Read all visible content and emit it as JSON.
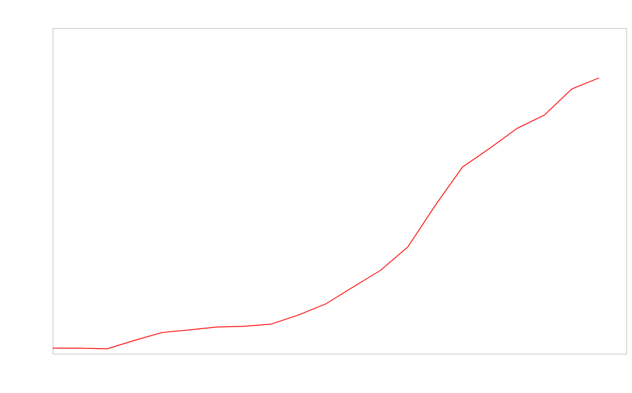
{
  "chart_data": {
    "type": "line",
    "color": "#ff0000",
    "values": [
      1.7,
      1.7,
      1.5,
      4.1,
      6.5,
      7.3,
      8.2,
      8.4,
      9.1,
      11.9,
      15.3,
      20.5,
      25.6,
      32.8,
      45.5,
      57.3,
      63.1,
      69.2,
      73.3,
      81.3,
      84.7
    ],
    "ylim": [
      0,
      100
    ]
  }
}
